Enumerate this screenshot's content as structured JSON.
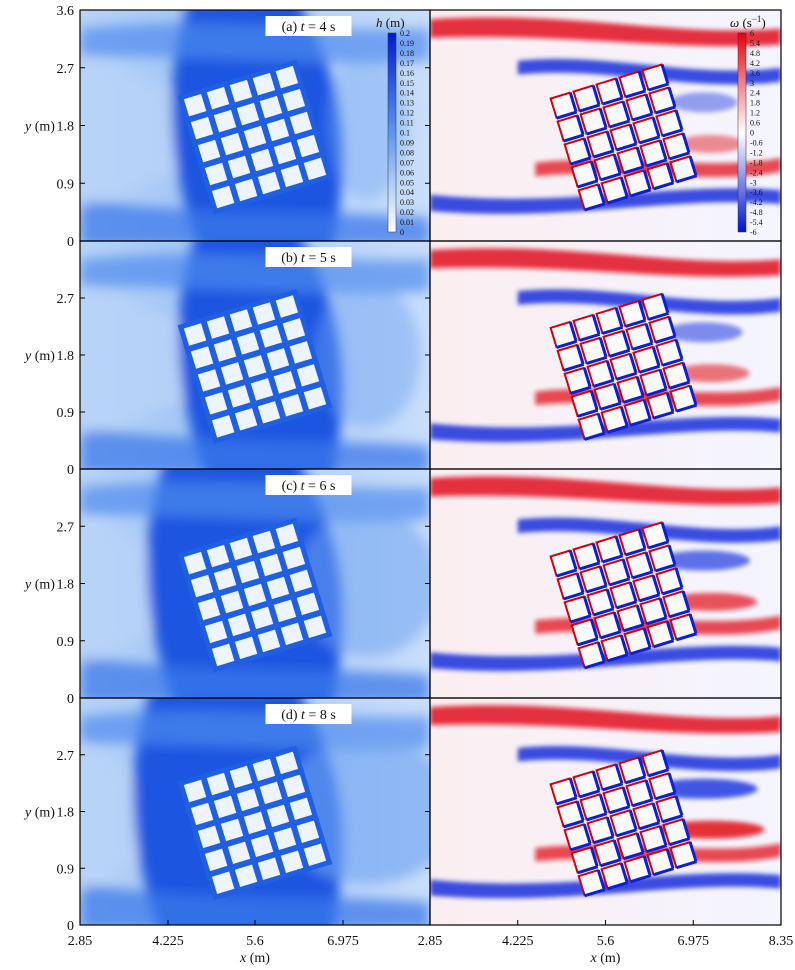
{
  "chart_data": {
    "type": "heatmap",
    "layout": "4 rows x 2 columns of 2D contour fields",
    "xlabel_parts": [
      "x",
      " (m)"
    ],
    "ylabel_parts": [
      "y",
      " (m)"
    ],
    "x_ticks": [
      "2.85",
      "4.225",
      "5.6",
      "6.975"
    ],
    "x_ticks_right_panel": [
      "2.85",
      "4.225",
      "5.6",
      "6.975",
      "8.35"
    ],
    "y_ticks": [
      "0",
      "0.9",
      "1.8",
      "2.7",
      "3.6"
    ],
    "y_tick_values": [
      0,
      0.9,
      1.8,
      2.7,
      3.6
    ],
    "xlim": [
      2.85,
      8.35
    ],
    "ylim": [
      0,
      3.6
    ],
    "rows": [
      {
        "label_prefix": "(a) ",
        "t_symbol": "t",
        "label_suffix": " = 4 s",
        "front_x": 0.2,
        "wake": 0.15
      },
      {
        "label_prefix": "(b) ",
        "t_symbol": "t",
        "label_suffix": " = 5 s",
        "front_x": 0.22,
        "wake": 0.35
      },
      {
        "label_prefix": "(c) ",
        "t_symbol": "t",
        "label_suffix": " = 6 s",
        "front_x": 0.13,
        "wake": 0.65
      },
      {
        "label_prefix": "(d) ",
        "t_symbol": "t",
        "label_suffix": " = 8 s",
        "front_x": 0.09,
        "wake": 0.95
      }
    ],
    "left_field": {
      "quantity": "h",
      "unit": " (m)",
      "cmap": "white-to-blue"
    },
    "right_field": {
      "quantity": "ω",
      "unit": " (s",
      "unit_sup": "−1",
      "unit_close": ")",
      "cmap": "blue-white-red"
    },
    "h_colorbar": {
      "ticks": [
        "0.2",
        "0.19",
        "0.18",
        "0.17",
        "0.16",
        "0.15",
        "0.14",
        "0.13",
        "0.12",
        "0.11",
        "0.1",
        "0.09",
        "0.08",
        "0.07",
        "0.06",
        "0.05",
        "0.04",
        "0.03",
        "0.02",
        "0.01",
        "0"
      ],
      "colors": [
        "#0019d6",
        "#ffffff"
      ]
    },
    "omega_colorbar": {
      "ticks": [
        "6",
        "5.4",
        "4.8",
        "4.2",
        "3.6",
        "3",
        "2.4",
        "1.8",
        "1.2",
        "0.6",
        "0",
        "-0.6",
        "-1.2",
        "-1.8",
        "-2.4",
        "-3",
        "-3.6",
        "-4.2",
        "-4.8",
        "-5.4",
        "-6"
      ],
      "colors": [
        "#e8000b",
        "#ffffff",
        "#0012d9"
      ]
    },
    "obstacle_array": {
      "rows": 5,
      "cols": 5,
      "rotation_deg": -17
    }
  }
}
